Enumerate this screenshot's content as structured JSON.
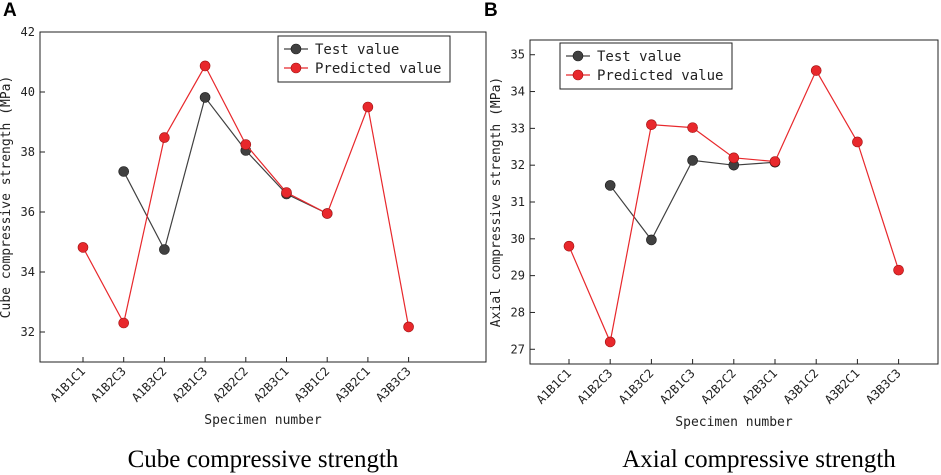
{
  "chart_data": [
    {
      "type": "line",
      "panel_label": "A",
      "caption": "Cube compressive strength",
      "xlabel": "Specimen number",
      "ylabel": "Cube compressive strength (MPa)",
      "categories": [
        "A1B1C1",
        "A1B2C3",
        "A1B3C2",
        "A2B1C3",
        "A2B2C2",
        "A2B3C1",
        "A3B1C2",
        "A3B2C1",
        "A3B3C3"
      ],
      "ylim": [
        31,
        42
      ],
      "yticks": [
        32,
        34,
        36,
        38,
        40,
        42
      ],
      "legend_position": "top-right",
      "series": [
        {
          "name": "Test value",
          "color": "#404040",
          "values": [
            null,
            37.35,
            34.75,
            39.82,
            38.05,
            36.6,
            35.95,
            null,
            null
          ]
        },
        {
          "name": "Predicted value",
          "color": "#e8282c",
          "values": [
            34.82,
            32.3,
            38.48,
            40.87,
            38.25,
            36.65,
            35.95,
            39.5,
            32.17
          ]
        }
      ]
    },
    {
      "type": "line",
      "panel_label": "B",
      "caption": "Axial compressive strength",
      "xlabel": "Specimen number",
      "ylabel": "Axial compressive strength (MPa)",
      "categories": [
        "A1B1C1",
        "A1B2C3",
        "A1B3C2",
        "A2B1C3",
        "A2B2C2",
        "A2B3C1",
        "A3B1C2",
        "A3B2C1",
        "A3B3C3"
      ],
      "ylim": [
        26.6,
        35.4
      ],
      "yticks": [
        27,
        28,
        29,
        30,
        31,
        32,
        33,
        34,
        35
      ],
      "legend_position": "top-right",
      "series": [
        {
          "name": "Test value",
          "color": "#404040",
          "values": [
            null,
            31.45,
            29.97,
            32.13,
            32.0,
            32.08,
            null,
            null,
            null
          ]
        },
        {
          "name": "Predicted value",
          "color": "#e8282c",
          "values": [
            29.8,
            27.2,
            33.1,
            33.02,
            32.2,
            32.1,
            34.57,
            32.63,
            29.15
          ]
        }
      ]
    }
  ]
}
